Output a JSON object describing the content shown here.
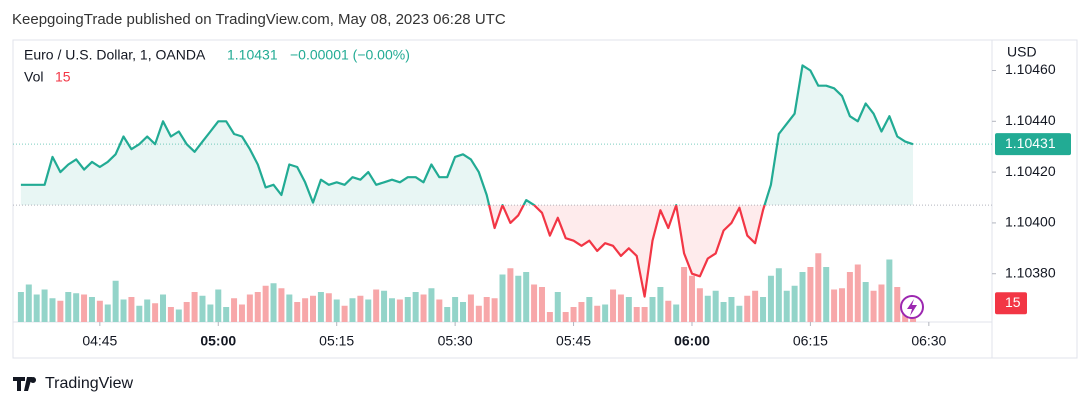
{
  "chart_data": {
    "type": "line",
    "header": "KeepgoingTrade published on TradingView.com, May 08, 2023 06:28 UTC",
    "currency": "USD",
    "footer": "TradingView",
    "change_label": "−0.00001 (−0.00%)",
    "baseline": 1.10407,
    "x": [
      "04:35",
      "04:36",
      "04:37",
      "04:38",
      "04:39",
      "04:40",
      "04:41",
      "04:42",
      "04:43",
      "04:44",
      "04:45",
      "04:46",
      "04:47",
      "04:48",
      "04:49",
      "04:50",
      "04:51",
      "04:52",
      "04:53",
      "04:54",
      "04:55",
      "04:56",
      "04:57",
      "04:58",
      "04:59",
      "05:00",
      "05:01",
      "05:02",
      "05:03",
      "05:04",
      "05:05",
      "05:06",
      "05:07",
      "05:08",
      "05:09",
      "05:10",
      "05:11",
      "05:12",
      "05:13",
      "05:14",
      "05:15",
      "05:16",
      "05:17",
      "05:18",
      "05:19",
      "05:20",
      "05:21",
      "05:22",
      "05:23",
      "05:24",
      "05:25",
      "05:26",
      "05:27",
      "05:28",
      "05:29",
      "05:30",
      "05:31",
      "05:32",
      "05:33",
      "05:34",
      "05:35",
      "05:36",
      "05:37",
      "05:38",
      "05:39",
      "05:40",
      "05:41",
      "05:42",
      "05:43",
      "05:44",
      "05:45",
      "05:46",
      "05:47",
      "05:48",
      "05:49",
      "05:50",
      "05:51",
      "05:52",
      "05:53",
      "05:54",
      "05:55",
      "05:56",
      "05:57",
      "05:58",
      "05:59",
      "06:00",
      "06:01",
      "06:02",
      "06:03",
      "06:04",
      "06:05",
      "06:06",
      "06:07",
      "06:08",
      "06:09",
      "06:10",
      "06:11",
      "06:12",
      "06:13",
      "06:14",
      "06:15",
      "06:16",
      "06:17",
      "06:18",
      "06:19",
      "06:20",
      "06:21",
      "06:22",
      "06:23",
      "06:24",
      "06:25",
      "06:26",
      "06:27",
      "06:28"
    ],
    "series": [
      {
        "name": "Euro / U.S. Dollar, 1, OANDA",
        "color_up": "#22ab94",
        "color_down": "#f23645",
        "values": [
          1.10415,
          1.10415,
          1.10415,
          1.10415,
          1.10426,
          1.1042,
          1.10423,
          1.10425,
          1.10421,
          1.10424,
          1.10422,
          1.10424,
          1.10427,
          1.10434,
          1.10429,
          1.10431,
          1.10434,
          1.10431,
          1.1044,
          1.10434,
          1.10436,
          1.10431,
          1.10428,
          1.10432,
          1.10436,
          1.1044,
          1.1044,
          1.10435,
          1.10434,
          1.10429,
          1.10423,
          1.10414,
          1.10415,
          1.10411,
          1.10423,
          1.10422,
          1.10416,
          1.10408,
          1.10417,
          1.10415,
          1.10416,
          1.10415,
          1.10418,
          1.10417,
          1.1042,
          1.10415,
          1.10416,
          1.10417,
          1.10416,
          1.10418,
          1.10418,
          1.10416,
          1.10423,
          1.10418,
          1.10418,
          1.10426,
          1.10427,
          1.10425,
          1.1042,
          1.10411,
          1.10398,
          1.10407,
          1.104,
          1.10403,
          1.10409,
          1.10407,
          1.10404,
          1.10395,
          1.10402,
          1.10394,
          1.10393,
          1.10391,
          1.10393,
          1.10389,
          1.10392,
          1.10391,
          1.10387,
          1.1039,
          1.10387,
          1.10371,
          1.10393,
          1.10405,
          1.10398,
          1.10407,
          1.10388,
          1.1038,
          1.10379,
          1.10386,
          1.10388,
          1.10397,
          1.104,
          1.10406,
          1.10395,
          1.10392,
          1.10405,
          1.10415,
          1.10435,
          1.10439,
          1.10443,
          1.10462,
          1.1046,
          1.10454,
          1.10454,
          1.10453,
          1.1045,
          1.10442,
          1.1044,
          1.10447,
          1.10443,
          1.10436,
          1.10442,
          1.10434,
          1.10432,
          1.10431
        ]
      }
    ],
    "volume": {
      "name": "Vol",
      "color_up": "#93d4c9",
      "color_down": "#f7a7a9",
      "values": [
        24,
        30,
        22,
        26,
        19,
        17,
        24,
        23,
        22,
        20,
        17,
        14,
        33,
        18,
        20,
        13,
        18,
        15,
        22,
        12,
        10,
        16,
        24,
        21,
        14,
        26,
        12,
        19,
        14,
        22,
        24,
        29,
        31,
        27,
        22,
        16,
        19,
        21,
        24,
        23,
        18,
        13,
        19,
        21,
        18,
        26,
        25,
        19,
        18,
        20,
        24,
        22,
        27,
        18,
        12,
        20,
        16,
        22,
        13,
        20,
        19,
        38,
        43,
        37,
        40,
        30,
        28,
        8,
        24,
        8,
        12,
        16,
        20,
        13,
        14,
        26,
        22,
        20,
        12,
        12,
        20,
        28,
        17,
        14,
        44,
        37,
        27,
        21,
        25,
        16,
        20,
        13,
        21,
        25,
        20,
        37,
        43,
        25,
        29,
        40,
        44,
        55,
        44,
        26,
        27,
        40,
        46,
        32,
        25,
        30,
        50,
        28,
        10,
        15
      ]
    },
    "xlim": [
      "04:34",
      "06:38"
    ],
    "xticks": [
      "04:45",
      "05:00",
      "05:15",
      "05:30",
      "05:45",
      "06:00",
      "06:15",
      "06:30"
    ],
    "ylim": [
      1.10361,
      1.10472
    ],
    "yticks": [
      {
        "value": 1.1038,
        "label": "1.10380"
      },
      {
        "value": 1.104,
        "label": "1.10400"
      },
      {
        "value": 1.1042,
        "label": "1.10420"
      },
      {
        "value": 1.1044,
        "label": "1.10440"
      },
      {
        "value": 1.1046,
        "label": "1.10460"
      }
    ]
  }
}
